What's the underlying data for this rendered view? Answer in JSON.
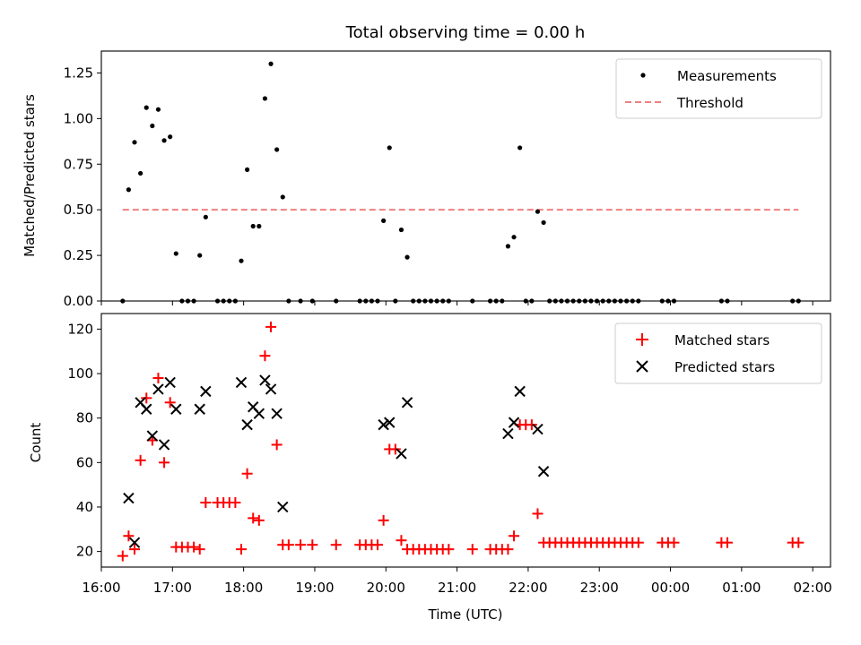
{
  "chart_data": [
    {
      "type": "scatter",
      "title": "Total observing time = 0.00 h",
      "xlabel": "",
      "ylabel": "Matched/Predicted stars",
      "xlim": [
        "16:00",
        "02:15"
      ],
      "ylim": [
        0,
        1.37
      ],
      "yticks": [
        "0.00",
        "0.25",
        "0.50",
        "0.75",
        "1.00",
        "1.25"
      ],
      "legend_position": "top-right",
      "colors": {
        "measurements": "#000000",
        "threshold": "#f08080"
      },
      "series": [
        {
          "name": "Measurements",
          "marker": "dot",
          "points": [
            [
              "16:18",
              0.0
            ],
            [
              "16:23",
              0.61
            ],
            [
              "16:28",
              0.87
            ],
            [
              "16:33",
              0.7
            ],
            [
              "16:38",
              1.06
            ],
            [
              "16:43",
              0.96
            ],
            [
              "16:48",
              1.05
            ],
            [
              "16:53",
              0.88
            ],
            [
              "16:58",
              0.9
            ],
            [
              "17:03",
              0.26
            ],
            [
              "17:08",
              0.0
            ],
            [
              "17:13",
              0.0
            ],
            [
              "17:18",
              0.0
            ],
            [
              "17:23",
              0.25
            ],
            [
              "17:28",
              0.46
            ],
            [
              "17:38",
              0.0
            ],
            [
              "17:43",
              0.0
            ],
            [
              "17:48",
              0.0
            ],
            [
              "17:53",
              0.0
            ],
            [
              "17:58",
              0.22
            ],
            [
              "18:03",
              0.72
            ],
            [
              "18:08",
              0.41
            ],
            [
              "18:13",
              0.41
            ],
            [
              "18:18",
              1.11
            ],
            [
              "18:23",
              1.3
            ],
            [
              "18:28",
              0.83
            ],
            [
              "18:33",
              0.57
            ],
            [
              "18:38",
              0.0
            ],
            [
              "18:48",
              0.0
            ],
            [
              "18:58",
              0.0
            ],
            [
              "19:18",
              0.0
            ],
            [
              "19:38",
              0.0
            ],
            [
              "19:43",
              0.0
            ],
            [
              "19:48",
              0.0
            ],
            [
              "19:53",
              0.0
            ],
            [
              "19:58",
              0.44
            ],
            [
              "20:03",
              0.84
            ],
            [
              "20:08",
              0.0
            ],
            [
              "20:13",
              0.39
            ],
            [
              "20:18",
              0.24
            ],
            [
              "20:23",
              0.0
            ],
            [
              "20:28",
              0.0
            ],
            [
              "20:33",
              0.0
            ],
            [
              "20:38",
              0.0
            ],
            [
              "20:43",
              0.0
            ],
            [
              "20:48",
              0.0
            ],
            [
              "20:53",
              0.0
            ],
            [
              "21:13",
              0.0
            ],
            [
              "21:28",
              0.0
            ],
            [
              "21:33",
              0.0
            ],
            [
              "21:38",
              0.0
            ],
            [
              "21:43",
              0.3
            ],
            [
              "21:48",
              0.35
            ],
            [
              "21:53",
              0.84
            ],
            [
              "21:58",
              0.0
            ],
            [
              "22:03",
              0.0
            ],
            [
              "22:08",
              0.49
            ],
            [
              "22:13",
              0.43
            ],
            [
              "22:18",
              0.0
            ],
            [
              "22:23",
              0.0
            ],
            [
              "22:28",
              0.0
            ],
            [
              "22:33",
              0.0
            ],
            [
              "22:38",
              0.0
            ],
            [
              "22:43",
              0.0
            ],
            [
              "22:48",
              0.0
            ],
            [
              "22:53",
              0.0
            ],
            [
              "22:58",
              0.0
            ],
            [
              "23:03",
              0.0
            ],
            [
              "23:08",
              0.0
            ],
            [
              "23:13",
              0.0
            ],
            [
              "23:18",
              0.0
            ],
            [
              "23:23",
              0.0
            ],
            [
              "23:28",
              0.0
            ],
            [
              "23:33",
              0.0
            ],
            [
              "23:53",
              0.0
            ],
            [
              "23:58",
              0.0
            ],
            [
              "00:03",
              0.0
            ],
            [
              "00:43",
              0.0
            ],
            [
              "00:48",
              0.0
            ],
            [
              "01:43",
              0.0
            ],
            [
              "01:48",
              0.0
            ]
          ]
        },
        {
          "name": "Threshold",
          "style": "dashed",
          "points": [
            [
              "16:18",
              0.5
            ],
            [
              "01:48",
              0.5
            ]
          ]
        }
      ]
    },
    {
      "type": "scatter",
      "title": "",
      "xlabel": "Time (UTC)",
      "ylabel": "Count",
      "xlim": [
        "16:00",
        "02:15"
      ],
      "ylim": [
        13,
        127
      ],
      "yticks": [
        "20",
        "40",
        "60",
        "80",
        "100",
        "120"
      ],
      "xticks": [
        "16:00",
        "17:00",
        "18:00",
        "19:00",
        "20:00",
        "21:00",
        "22:00",
        "23:00",
        "00:00",
        "01:00",
        "02:00"
      ],
      "legend_position": "top-right",
      "colors": {
        "matched": "#ff0000",
        "predicted": "#000000"
      },
      "series": [
        {
          "name": "Matched stars",
          "marker": "plus",
          "points": [
            [
              "16:18",
              18
            ],
            [
              "16:23",
              27
            ],
            [
              "16:28",
              21
            ],
            [
              "16:33",
              61
            ],
            [
              "16:38",
              89
            ],
            [
              "16:43",
              70
            ],
            [
              "16:48",
              98
            ],
            [
              "16:53",
              60
            ],
            [
              "16:58",
              87
            ],
            [
              "17:03",
              22
            ],
            [
              "17:08",
              22
            ],
            [
              "17:13",
              22
            ],
            [
              "17:18",
              22
            ],
            [
              "17:23",
              21
            ],
            [
              "17:28",
              42
            ],
            [
              "17:38",
              42
            ],
            [
              "17:43",
              42
            ],
            [
              "17:48",
              42
            ],
            [
              "17:53",
              42
            ],
            [
              "17:58",
              21
            ],
            [
              "18:03",
              55
            ],
            [
              "18:08",
              35
            ],
            [
              "18:13",
              34
            ],
            [
              "18:18",
              108
            ],
            [
              "18:23",
              121
            ],
            [
              "18:28",
              68
            ],
            [
              "18:33",
              23
            ],
            [
              "18:38",
              23
            ],
            [
              "18:48",
              23
            ],
            [
              "18:58",
              23
            ],
            [
              "19:18",
              23
            ],
            [
              "19:38",
              23
            ],
            [
              "19:43",
              23
            ],
            [
              "19:48",
              23
            ],
            [
              "19:53",
              23
            ],
            [
              "19:58",
              34
            ],
            [
              "20:03",
              66
            ],
            [
              "20:08",
              66
            ],
            [
              "20:13",
              25
            ],
            [
              "20:18",
              21
            ],
            [
              "20:23",
              21
            ],
            [
              "20:28",
              21
            ],
            [
              "20:33",
              21
            ],
            [
              "20:38",
              21
            ],
            [
              "20:43",
              21
            ],
            [
              "20:48",
              21
            ],
            [
              "20:53",
              21
            ],
            [
              "21:13",
              21
            ],
            [
              "21:28",
              21
            ],
            [
              "21:33",
              21
            ],
            [
              "21:38",
              21
            ],
            [
              "21:43",
              21
            ],
            [
              "21:48",
              27
            ],
            [
              "21:53",
              77
            ],
            [
              "21:58",
              77
            ],
            [
              "22:03",
              77
            ],
            [
              "22:08",
              37
            ],
            [
              "22:13",
              24
            ],
            [
              "22:18",
              24
            ],
            [
              "22:23",
              24
            ],
            [
              "22:28",
              24
            ],
            [
              "22:33",
              24
            ],
            [
              "22:38",
              24
            ],
            [
              "22:43",
              24
            ],
            [
              "22:48",
              24
            ],
            [
              "22:53",
              24
            ],
            [
              "22:58",
              24
            ],
            [
              "23:03",
              24
            ],
            [
              "23:08",
              24
            ],
            [
              "23:13",
              24
            ],
            [
              "23:18",
              24
            ],
            [
              "23:23",
              24
            ],
            [
              "23:28",
              24
            ],
            [
              "23:33",
              24
            ],
            [
              "23:53",
              24
            ],
            [
              "23:58",
              24
            ],
            [
              "00:03",
              24
            ],
            [
              "00:43",
              24
            ],
            [
              "00:48",
              24
            ],
            [
              "01:43",
              24
            ],
            [
              "01:48",
              24
            ]
          ]
        },
        {
          "name": "Predicted stars",
          "marker": "x",
          "points": [
            [
              "16:23",
              44
            ],
            [
              "16:28",
              24
            ],
            [
              "16:33",
              87
            ],
            [
              "16:38",
              84
            ],
            [
              "16:43",
              72
            ],
            [
              "16:48",
              93
            ],
            [
              "16:53",
              68
            ],
            [
              "16:58",
              96
            ],
            [
              "17:03",
              84
            ],
            [
              "17:23",
              84
            ],
            [
              "17:28",
              92
            ],
            [
              "17:58",
              96
            ],
            [
              "18:03",
              77
            ],
            [
              "18:08",
              85
            ],
            [
              "18:13",
              82
            ],
            [
              "18:18",
              97
            ],
            [
              "18:23",
              93
            ],
            [
              "18:28",
              82
            ],
            [
              "18:33",
              40
            ],
            [
              "19:58",
              77
            ],
            [
              "20:03",
              78
            ],
            [
              "20:13",
              64
            ],
            [
              "20:18",
              87
            ],
            [
              "21:43",
              73
            ],
            [
              "21:48",
              78
            ],
            [
              "21:53",
              92
            ],
            [
              "22:08",
              75
            ],
            [
              "22:13",
              56
            ]
          ]
        }
      ]
    }
  ]
}
